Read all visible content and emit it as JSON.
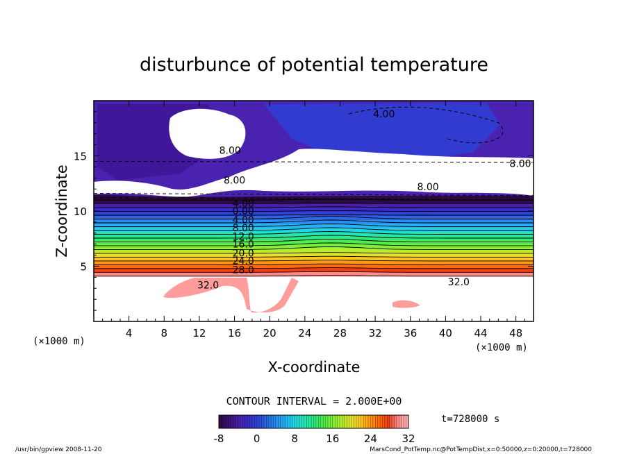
{
  "chart_data": {
    "type": "heatmap",
    "title": "disturbunce of potential temperature",
    "xlabel": "X-coordinate",
    "ylabel": "Z-coordinate",
    "x_unit": "(×1000 m)",
    "z_unit": "(×1000 m)",
    "xlim": [
      0,
      50
    ],
    "ylim": [
      0,
      20
    ],
    "x_ticks": [
      4,
      8,
      12,
      16,
      20,
      24,
      28,
      32,
      36,
      40,
      44,
      48
    ],
    "y_ticks": [
      5,
      10,
      15
    ],
    "contour_interval_text": "CONTOUR INTERVAL = 2.000E+00",
    "time_text": "t=728000 s",
    "colorbar": {
      "min": -8,
      "max": 32,
      "tick_labels": [
        "-8",
        "0",
        "8",
        "16",
        "24",
        "32"
      ],
      "colors": [
        "#2a0a40",
        "#3a1378",
        "#4a1fa8",
        "#3a2cc8",
        "#2f44d8",
        "#2b6ae0",
        "#2a8ff0",
        "#22b4f4",
        "#1fd6e8",
        "#22e6b4",
        "#2ee884",
        "#4ced4c",
        "#7cf03a",
        "#b4ee30",
        "#e0e42a",
        "#ffc81e",
        "#ff9a12",
        "#ff6a0c",
        "#f04016",
        "#ff8a8a",
        "#ffb0b0"
      ]
    },
    "contour_labels": [
      {
        "text": "4.00",
        "x": 33,
        "z": 18.8
      },
      {
        "text": "8.00",
        "x": 15.5,
        "z": 15.5
      },
      {
        "text": "8.00",
        "x": 48.5,
        "z": 14.3
      },
      {
        "text": "8.00",
        "x": 16,
        "z": 12.8
      },
      {
        "text": "8.00",
        "x": 38,
        "z": 12.2
      },
      {
        "text": "4.00",
        "x": 17,
        "z": 10.7
      },
      {
        "text": "0.00",
        "x": 17,
        "z": 10.0
      },
      {
        "text": "4.00",
        "x": 17,
        "z": 9.2
      },
      {
        "text": "8.00",
        "x": 17,
        "z": 8.5
      },
      {
        "text": "12.0",
        "x": 17,
        "z": 7.7
      },
      {
        "text": "16.0",
        "x": 17,
        "z": 7.0
      },
      {
        "text": "20.0",
        "x": 17,
        "z": 6.2
      },
      {
        "text": "24.0",
        "x": 17,
        "z": 5.5
      },
      {
        "text": "28.0",
        "x": 17,
        "z": 4.7
      },
      {
        "text": "32.0",
        "x": 13,
        "z": 3.3
      },
      {
        "text": "32.0",
        "x": 41.5,
        "z": 3.6
      }
    ]
  },
  "footer": {
    "left": "/usr/bin/gpview   2008-11-20",
    "right": "MarsCond_PotTemp.nc@PotTempDist,x=0:50000,z=0:20000,t=728000"
  }
}
